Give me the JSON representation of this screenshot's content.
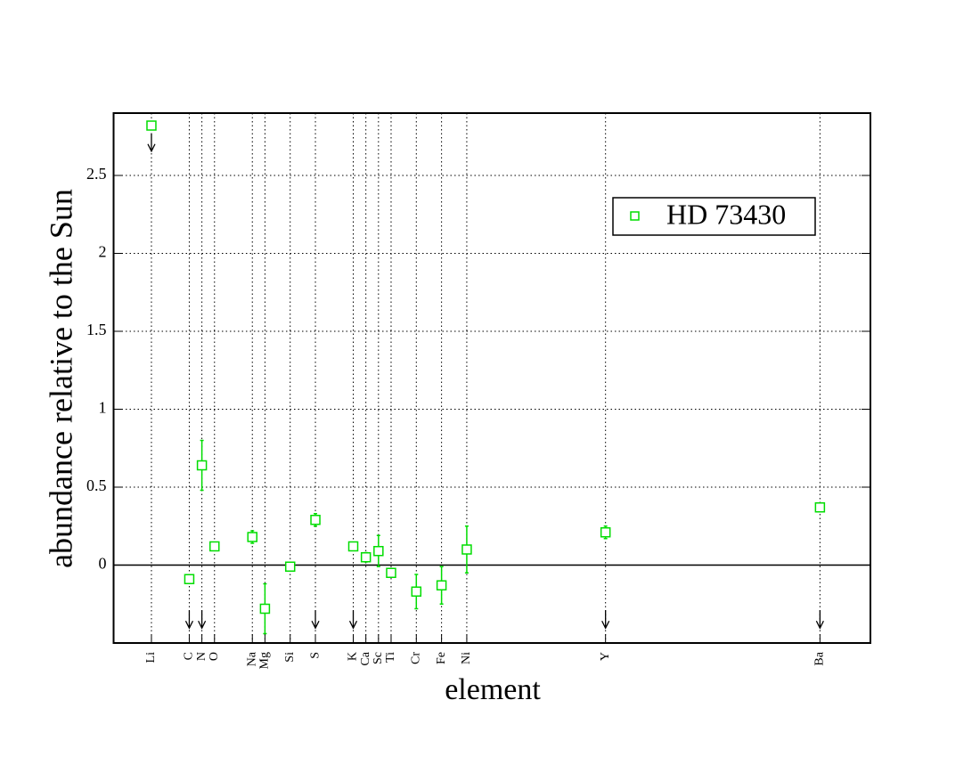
{
  "chart_data": {
    "type": "scatter",
    "x_label": "element",
    "y_label": "abundance relative to the Sun",
    "x": [
      3,
      6,
      7,
      8,
      11,
      12,
      14,
      16,
      19,
      20,
      21,
      22,
      24,
      26,
      28,
      39,
      56
    ],
    "series": [
      {
        "name": "HD 73430",
        "color": "#00dd00",
        "values": [
          2.82,
          -0.09,
          0.64,
          0.12,
          0.18,
          -0.28,
          -0.01,
          0.29,
          0.12,
          0.05,
          0.09,
          -0.05,
          -0.17,
          -0.13,
          0.1,
          0.21,
          0.37
        ],
        "errors": [
          null,
          0.02,
          0.16,
          null,
          0.04,
          0.16,
          null,
          0.04,
          null,
          0.03,
          0.1,
          null,
          0.11,
          0.12,
          0.15,
          0.04,
          null
        ]
      }
    ],
    "arrows": {
      "x": [
        3,
        6,
        7,
        16,
        19,
        39,
        56
      ],
      "y": [
        2.77,
        -0.29,
        -0.29,
        -0.29,
        -0.29,
        -0.29,
        -0.29
      ]
    },
    "xlim": [
      0,
      60
    ],
    "ylim": [
      -0.5,
      2.9
    ],
    "xticks": [
      {
        "value": 3,
        "label": "Li"
      },
      {
        "value": 6,
        "label": "C"
      },
      {
        "value": 7,
        "label": "N"
      },
      {
        "value": 8,
        "label": "O"
      },
      {
        "value": 11,
        "label": "Na"
      },
      {
        "value": 12,
        "label": "Mg"
      },
      {
        "value": 14,
        "label": "Si"
      },
      {
        "value": 16,
        "label": "S"
      },
      {
        "value": 19,
        "label": "K"
      },
      {
        "value": 20,
        "label": "Ca"
      },
      {
        "value": 21,
        "label": "Sc"
      },
      {
        "value": 22,
        "label": "Ti"
      },
      {
        "value": 24,
        "label": "Cr"
      },
      {
        "value": 26,
        "label": "Fe"
      },
      {
        "value": 28,
        "label": "Ni"
      },
      {
        "value": 39,
        "label": "Y"
      },
      {
        "value": 56,
        "label": "Ba"
      }
    ],
    "yticks": [
      0,
      0.5,
      1,
      1.5,
      2,
      2.5
    ],
    "grid": true,
    "legend": "upper right"
  }
}
